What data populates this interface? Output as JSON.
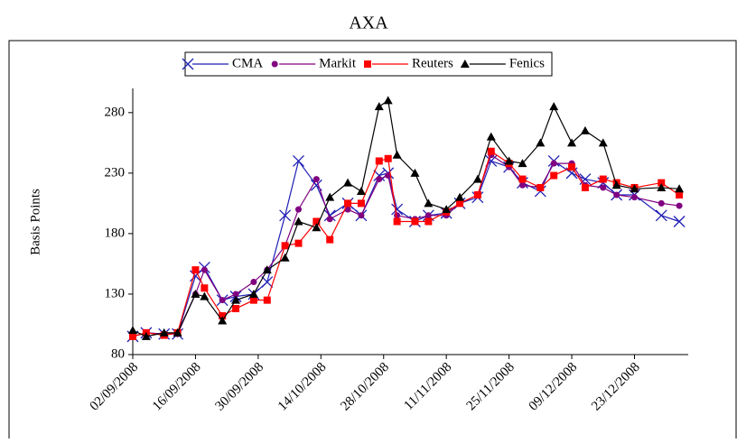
{
  "chart_data": {
    "type": "line",
    "title": "AXA",
    "y_label": "Basis Points",
    "x": [
      "02/09/2008",
      "05/09/2008",
      "09/09/2008",
      "12/09/2008",
      "16/09/2008",
      "18/09/2008",
      "22/09/2008",
      "25/09/2008",
      "29/09/2008",
      "02/10/2008",
      "06/10/2008",
      "09/10/2008",
      "13/10/2008",
      "16/10/2008",
      "20/10/2008",
      "23/10/2008",
      "27/10/2008",
      "29/10/2008",
      "31/10/2008",
      "04/11/2008",
      "07/11/2008",
      "11/11/2008",
      "14/11/2008",
      "18/11/2008",
      "21/11/2008",
      "25/11/2008",
      "28/11/2008",
      "02/12/2008",
      "05/12/2008",
      "09/12/2008",
      "12/12/2008",
      "16/12/2008",
      "19/12/2008",
      "23/12/2008",
      "29/12/2008",
      "02/01/2009"
    ],
    "series": [
      {
        "name": "CMA",
        "color": "#1f1fb4",
        "marker": "x",
        "values": [
          95,
          98,
          97,
          97,
          145,
          152,
          125,
          128,
          130,
          140,
          195,
          240,
          220,
          195,
          205,
          195,
          228,
          230,
          200,
          190,
          195,
          197,
          205,
          210,
          240,
          235,
          222,
          215,
          240,
          230,
          225,
          222,
          212,
          212,
          195,
          190
        ]
      },
      {
        "name": "Markit",
        "color": "#800080",
        "marker": "circle",
        "values": [
          95,
          98,
          97,
          97,
          130,
          150,
          125,
          130,
          140,
          150,
          170,
          200,
          225,
          192,
          200,
          195,
          225,
          228,
          195,
          192,
          195,
          195,
          205,
          212,
          245,
          235,
          220,
          218,
          238,
          238,
          220,
          218,
          212,
          210,
          205,
          203
        ]
      },
      {
        "name": "Reuters",
        "color": "#ff0000",
        "marker": "square",
        "values": [
          95,
          98,
          96,
          98,
          150,
          135,
          112,
          118,
          125,
          125,
          170,
          172,
          190,
          175,
          205,
          205,
          240,
          242,
          190,
          190,
          190,
          198,
          205,
          212,
          248,
          238,
          225,
          218,
          228,
          235,
          218,
          225,
          222,
          218,
          222,
          212
        ]
      },
      {
        "name": "Fenics",
        "color": "#000000",
        "marker": "triangle",
        "values": [
          100,
          95,
          98,
          98,
          130,
          128,
          108,
          125,
          130,
          150,
          160,
          190,
          185,
          210,
          222,
          215,
          285,
          290,
          245,
          230,
          205,
          200,
          210,
          225,
          260,
          240,
          238,
          255,
          285,
          255,
          265,
          255,
          220,
          217,
          218,
          217
        ]
      }
    ],
    "xlim": [
      "02/09/2008",
      "04/01/2009"
    ],
    "xticks": [
      "02/09/2008",
      "16/09/2008",
      "30/09/2008",
      "14/10/2008",
      "28/10/2008",
      "11/11/2008",
      "25/11/2008",
      "09/12/2008",
      "23/12/2008"
    ],
    "ylim": [
      80,
      300
    ],
    "yticks": [
      80,
      130,
      180,
      230,
      280
    ],
    "legend": "top"
  }
}
